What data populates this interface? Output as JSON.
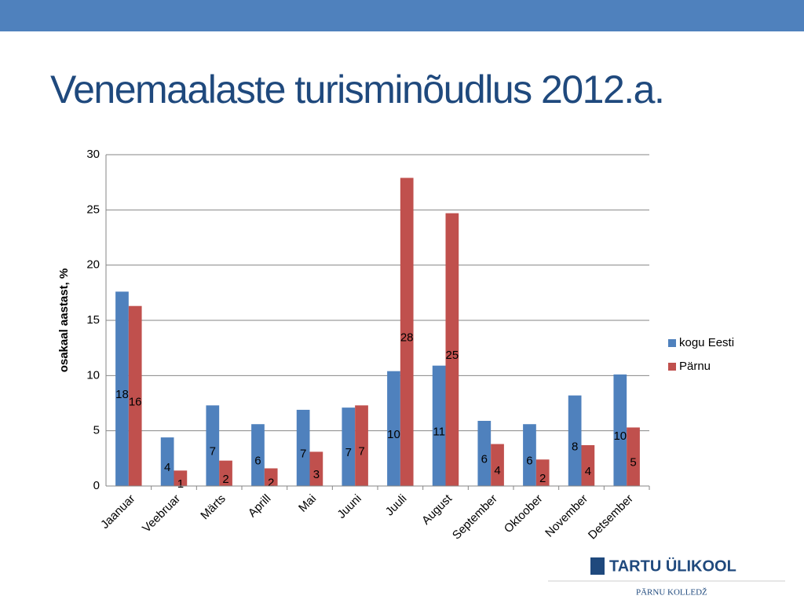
{
  "chart_data": {
    "type": "bar",
    "title": "Venemaalaste turisminõudlus 2012.a.",
    "y_label": "osakaal aastast, %",
    "categories": [
      "Jaanuar",
      "Veebruar",
      "Märts",
      "Aprill",
      "Mai",
      "Juuni",
      "Juuli",
      "August",
      "September",
      "Oktoober",
      "November",
      "Detsember"
    ],
    "series": [
      {
        "name": "kogu Eesti",
        "color": "#4f81bd",
        "values": [
          17.6,
          4.4,
          7.3,
          5.6,
          6.9,
          7.1,
          10.4,
          10.9,
          5.9,
          5.6,
          8.2,
          10.1
        ],
        "value_labels": [
          "18",
          "4",
          "7",
          "6",
          "7",
          "7",
          "10",
          "11",
          "6",
          "6",
          "8",
          "10"
        ]
      },
      {
        "name": "Pärnu",
        "color": "#c0504d",
        "values": [
          16.3,
          1.4,
          2.3,
          1.6,
          3.1,
          7.3,
          27.9,
          24.7,
          3.8,
          2.4,
          3.7,
          5.3
        ],
        "value_labels": [
          "16",
          "1",
          "2",
          "2",
          "3",
          "7",
          "28",
          "25",
          "4",
          "2",
          "4",
          "5"
        ]
      }
    ],
    "ylim": [
      0,
      30
    ],
    "yticks": [
      0,
      5,
      10,
      15,
      20,
      25,
      30
    ],
    "grid": true,
    "legend": "right"
  },
  "logo": {
    "name": "TARTU ÜLIKOOL",
    "subtitle": "PÄRNU KOLLEDŽ"
  }
}
